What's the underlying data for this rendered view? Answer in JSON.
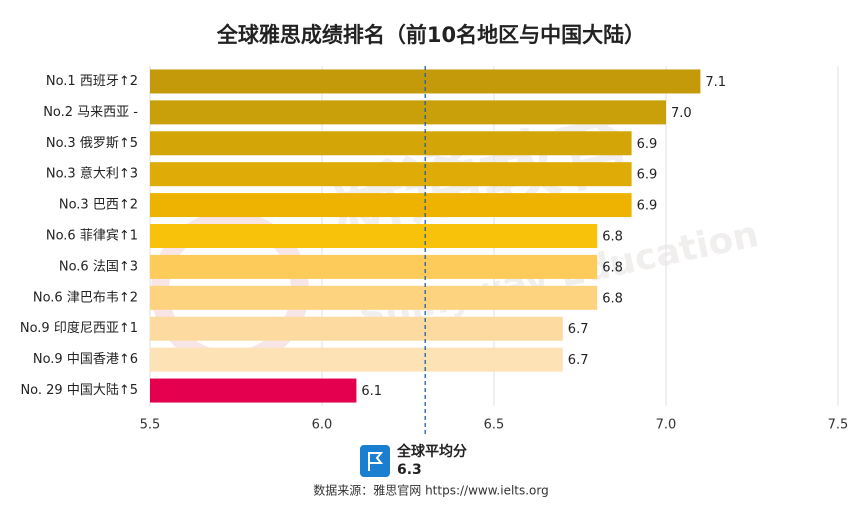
{
  "chart_data": {
    "type": "bar",
    "orientation": "horizontal",
    "title": "全球雅思成绩排名（前10名地区与中国大陆）",
    "categories": [
      "No.1 西班牙↑2",
      "No.2 马来西亚 -",
      "No.3 俄罗斯↑5",
      "No.3 意大利↑3",
      "No.3 巴西↑2",
      "No.6 菲律宾↑1",
      "No.6 法国↑3",
      "No.6 津巴布韦↑2",
      "No.9 印度尼西亚↑1",
      "No.9 中国香港↑6",
      "No. 29 中国大陆↑5"
    ],
    "values": [
      7.1,
      7.0,
      6.9,
      6.9,
      6.9,
      6.8,
      6.8,
      6.8,
      6.7,
      6.7,
      6.1
    ],
    "value_labels": [
      "7.1",
      "7.0",
      "6.9",
      "6.9",
      "6.9",
      "6.8",
      "6.8",
      "6.8",
      "6.7",
      "6.7",
      "6.1"
    ],
    "colors": [
      "#c49a0a",
      "#c9a00a",
      "#d4a507",
      "#dfab06",
      "#eeb300",
      "#f8c20a",
      "#fccb5a",
      "#fdd380",
      "#fddba0",
      "#fde2b6",
      "#e4004f"
    ],
    "xlim": [
      5.5,
      7.5
    ],
    "xticks": [
      5.5,
      {
        "value": 6.0,
        "label": "6.0"
      },
      6.5,
      {
        "value": 7.0,
        "label": "7.0"
      },
      7.5
    ],
    "grid": true,
    "reference": {
      "label": "全球平均分",
      "value": 6.3
    },
    "watermark": [
      "新通教育",
      "Shinyway Education"
    ],
    "source": "数据来源：雅思官网 https://www.ielts.org"
  }
}
